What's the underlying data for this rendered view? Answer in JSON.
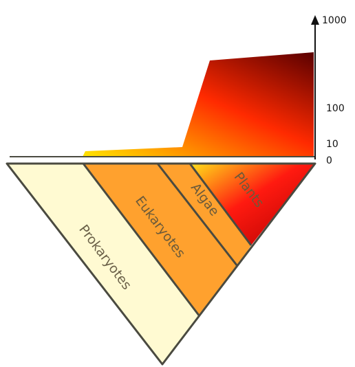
{
  "axis": {
    "ticks": [
      "1000",
      "100",
      "10",
      "0"
    ]
  },
  "groups": [
    {
      "label": "Prokaryotes",
      "color": "#FFFAD2"
    },
    {
      "label": "Eukaryotes",
      "color": "#FFA12E"
    },
    {
      "label": "Algae",
      "color": "#FFA12E"
    },
    {
      "label": "Plants",
      "gradient": [
        "#FFE21A",
        "#FF1010",
        "#C00000"
      ]
    }
  ],
  "genome_profile": {
    "gradient": [
      "#FFE600",
      "#FF2A00",
      "#5A0000"
    ]
  },
  "colors": {
    "outline": "#4a4a40",
    "axis": "#111111"
  }
}
